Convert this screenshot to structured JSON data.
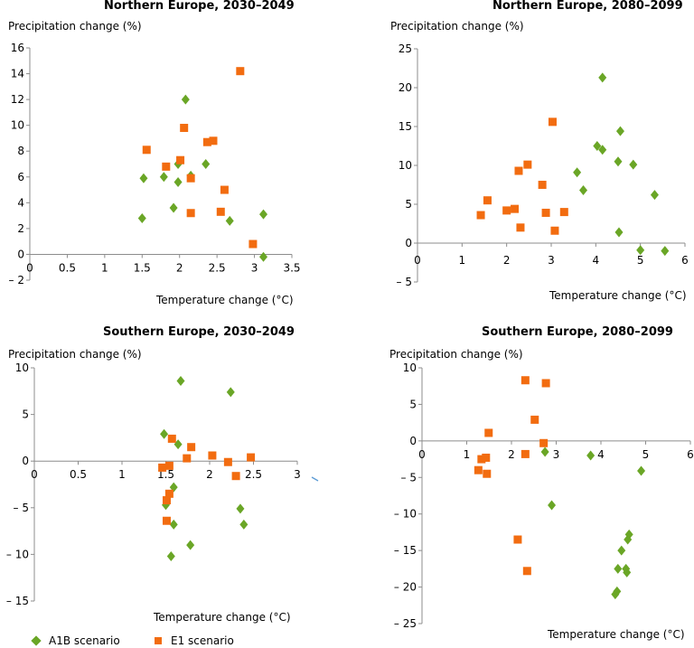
{
  "legend": [
    {
      "label": "A1B scenario",
      "color": "#6aa626",
      "marker": "diamond"
    },
    {
      "label": "E1 scenario",
      "color": "#f26c10",
      "marker": "square"
    }
  ],
  "chart_data": [
    {
      "type": "scatter",
      "title": "Northern Europe, 2030–2049",
      "xlabel": "Temperature change (°C)",
      "ylabel": "Precipitation change (%)",
      "xlim": [
        0,
        3.5
      ],
      "ylim": [
        -2,
        16
      ],
      "xticks": [
        0,
        0.5,
        1,
        1.5,
        2,
        2.5,
        3,
        3.5
      ],
      "yticks": [
        -2,
        0,
        2,
        4,
        6,
        8,
        10,
        12,
        14,
        16
      ],
      "xtick_labels": [
        "0",
        "0.5",
        "1",
        "1.5",
        "2",
        "2.5",
        "3",
        "3.5"
      ],
      "ytick_labels": [
        "– 2",
        "0",
        "2",
        "4",
        "6",
        "8",
        "10",
        "12",
        "14",
        "16"
      ],
      "series": [
        {
          "name": "A1B scenario",
          "points": [
            [
              1.5,
              2.8
            ],
            [
              1.52,
              5.9
            ],
            [
              1.79,
              6.0
            ],
            [
              1.92,
              3.6
            ],
            [
              1.98,
              7.0
            ],
            [
              1.98,
              5.6
            ],
            [
              2.08,
              12.0
            ],
            [
              2.15,
              6.1
            ],
            [
              2.35,
              7.0
            ],
            [
              2.67,
              2.6
            ],
            [
              3.12,
              3.1
            ],
            [
              3.12,
              -0.2
            ]
          ]
        },
        {
          "name": "E1 scenario",
          "points": [
            [
              1.56,
              8.1
            ],
            [
              1.82,
              6.8
            ],
            [
              2.01,
              7.3
            ],
            [
              2.06,
              9.8
            ],
            [
              2.15,
              5.9
            ],
            [
              2.15,
              3.2
            ],
            [
              2.37,
              8.7
            ],
            [
              2.45,
              8.8
            ],
            [
              2.55,
              3.3
            ],
            [
              2.6,
              5.0
            ],
            [
              2.81,
              14.2
            ],
            [
              2.98,
              0.8
            ]
          ]
        }
      ]
    },
    {
      "type": "scatter",
      "title": "Northern Europe, 2080–2099",
      "xlabel": "Temperature change (°C)",
      "ylabel": "Precipitation change (%)",
      "xlim": [
        0,
        6
      ],
      "ylim": [
        -5,
        25
      ],
      "xticks": [
        0,
        1,
        2,
        3,
        4,
        5,
        6
      ],
      "yticks": [
        -5,
        0,
        5,
        10,
        15,
        20,
        25
      ],
      "xtick_labels": [
        "0",
        "1",
        "2",
        "3",
        "4",
        "5",
        "6"
      ],
      "ytick_labels": [
        "– 5",
        "0",
        "5",
        "10",
        "15",
        "20",
        "25"
      ],
      "series": [
        {
          "name": "A1B scenario",
          "points": [
            [
              3.58,
              9.1
            ],
            [
              3.72,
              6.8
            ],
            [
              4.03,
              12.5
            ],
            [
              4.15,
              21.3
            ],
            [
              4.15,
              12.0
            ],
            [
              4.5,
              10.5
            ],
            [
              4.52,
              1.4
            ],
            [
              4.55,
              14.4
            ],
            [
              4.84,
              10.1
            ],
            [
              5.0,
              -0.9
            ],
            [
              5.32,
              6.2
            ],
            [
              5.55,
              -1.0
            ]
          ]
        },
        {
          "name": "E1 scenario",
          "points": [
            [
              1.42,
              3.6
            ],
            [
              1.57,
              5.5
            ],
            [
              2.0,
              4.2
            ],
            [
              2.18,
              4.4
            ],
            [
              2.27,
              9.3
            ],
            [
              2.31,
              2.0
            ],
            [
              2.47,
              10.1
            ],
            [
              2.8,
              7.5
            ],
            [
              2.88,
              3.9
            ],
            [
              3.03,
              15.6
            ],
            [
              3.08,
              1.6
            ],
            [
              3.29,
              4.0
            ]
          ]
        }
      ]
    },
    {
      "type": "scatter",
      "title": "Southern Europe, 2030–2049",
      "xlabel": "Temperature change (°C)",
      "ylabel": "Precipitation change (%)",
      "xlim": [
        0,
        3
      ],
      "ylim": [
        -15,
        10
      ],
      "xticks": [
        0,
        0.5,
        1,
        1.5,
        2,
        2.5,
        3
      ],
      "yticks": [
        -15,
        -10,
        -5,
        0,
        5,
        10
      ],
      "xtick_labels": [
        "0",
        "0.5",
        "1",
        "1.5",
        "2",
        "2.5",
        "3"
      ],
      "ytick_labels": [
        "– 15",
        "– 10",
        "– 5",
        "0",
        "5",
        "10"
      ],
      "series": [
        {
          "name": "A1B scenario",
          "points": [
            [
              1.48,
              2.9
            ],
            [
              1.5,
              -4.7
            ],
            [
              1.56,
              -10.2
            ],
            [
              1.59,
              -6.8
            ],
            [
              1.59,
              -2.8
            ],
            [
              1.64,
              1.8
            ],
            [
              1.67,
              8.6
            ],
            [
              1.78,
              -9.0
            ],
            [
              2.24,
              7.4
            ],
            [
              2.35,
              -5.1
            ],
            [
              2.39,
              -6.8
            ]
          ]
        },
        {
          "name": "E1 scenario",
          "points": [
            [
              1.46,
              -0.7
            ],
            [
              1.51,
              -4.2
            ],
            [
              1.51,
              -6.4
            ],
            [
              1.54,
              -3.5
            ],
            [
              1.54,
              -0.5
            ],
            [
              1.57,
              2.4
            ],
            [
              1.74,
              0.3
            ],
            [
              1.79,
              1.5
            ],
            [
              2.03,
              0.6
            ],
            [
              2.21,
              -0.1
            ],
            [
              2.3,
              -1.6
            ],
            [
              2.47,
              0.4
            ]
          ]
        }
      ]
    },
    {
      "type": "scatter",
      "title": "Southern Europe, 2080–2099",
      "xlabel": "Temperature change (°C)",
      "ylabel": "Precipitation change (%)",
      "xlim": [
        0,
        6
      ],
      "ylim": [
        -25,
        10
      ],
      "xticks": [
        0,
        1,
        2,
        3,
        4,
        5,
        6
      ],
      "yticks": [
        -25,
        -20,
        -15,
        -10,
        -5,
        0,
        5,
        10
      ],
      "xtick_labels": [
        "0",
        "1",
        "2",
        "3",
        "4",
        "5",
        "6"
      ],
      "ytick_labels": [
        "– 25",
        "– 20",
        "– 15",
        "– 10",
        "– 5",
        "0",
        "5",
        "10"
      ],
      "series": [
        {
          "name": "A1B scenario",
          "points": [
            [
              2.75,
              -1.5
            ],
            [
              2.9,
              -8.8
            ],
            [
              3.77,
              -2.0
            ],
            [
              4.32,
              -21.0
            ],
            [
              4.36,
              -20.6
            ],
            [
              4.38,
              -17.5
            ],
            [
              4.46,
              -15.0
            ],
            [
              4.56,
              -17.5
            ],
            [
              4.58,
              -18.0
            ],
            [
              4.6,
              -13.5
            ],
            [
              4.63,
              -12.8
            ],
            [
              4.9,
              -4.1
            ]
          ]
        },
        {
          "name": "E1 scenario",
          "points": [
            [
              1.26,
              -4.0
            ],
            [
              1.33,
              -2.5
            ],
            [
              1.43,
              -2.3
            ],
            [
              1.45,
              -4.5
            ],
            [
              1.49,
              1.1
            ],
            [
              2.14,
              -13.5
            ],
            [
              2.31,
              -1.8
            ],
            [
              2.31,
              8.3
            ],
            [
              2.35,
              -17.8
            ],
            [
              2.52,
              2.9
            ],
            [
              2.72,
              -0.3
            ],
            [
              2.77,
              7.9
            ]
          ]
        }
      ]
    }
  ]
}
